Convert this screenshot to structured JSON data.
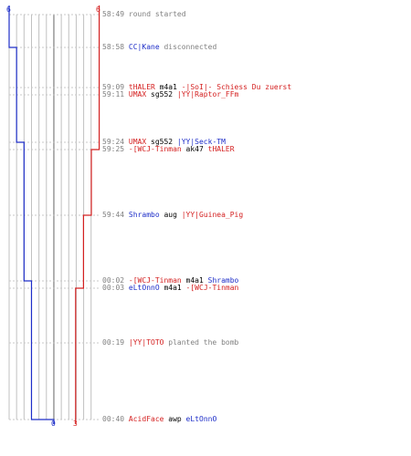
{
  "colors": {
    "ct": "#1e2ec8",
    "t": "#d42020",
    "grid": "#c0c0c0",
    "center": "#909090",
    "guide": "#c8c8c8",
    "time": "#808080",
    "text": "#000000"
  },
  "counts": {
    "ct_top": "6",
    "t_top": "6",
    "ct_bottom": "0",
    "t_bottom": "3"
  },
  "events": [
    {
      "time": "58:49",
      "parts": [
        {
          "text": "round started",
          "color": "time"
        }
      ]
    },
    {
      "time": "58:58",
      "parts": [
        {
          "text": "CC|Kane",
          "color": "ct"
        },
        {
          "text": " disconnected",
          "color": "time"
        }
      ]
    },
    {
      "time": "59:09",
      "parts": [
        {
          "text": "tHALER",
          "color": "t"
        },
        {
          "text": " m4a1 ",
          "color": "text"
        },
        {
          "text": "-|SoI|- Schiess Du zuerst",
          "color": "t"
        }
      ]
    },
    {
      "time": "59:11",
      "parts": [
        {
          "text": "UMAX",
          "color": "t"
        },
        {
          "text": " sg552 ",
          "color": "text"
        },
        {
          "text": "|YY|Raptor_FFm",
          "color": "t"
        }
      ]
    },
    {
      "time": "59:24",
      "parts": [
        {
          "text": "UMAX",
          "color": "t"
        },
        {
          "text": " sg552 ",
          "color": "text"
        },
        {
          "text": "|YY|Seck-TM",
          "color": "ct"
        }
      ]
    },
    {
      "time": "59:25",
      "parts": [
        {
          "text": "-[WCJ-Tinman",
          "color": "t"
        },
        {
          "text": " ak47 ",
          "color": "text"
        },
        {
          "text": "tHALER",
          "color": "t"
        }
      ]
    },
    {
      "time": "59:44",
      "parts": [
        {
          "text": "Shrambo",
          "color": "ct"
        },
        {
          "text": " aug ",
          "color": "text"
        },
        {
          "text": "|YY|Guinea_Pig",
          "color": "t"
        }
      ]
    },
    {
      "time": "00:02",
      "parts": [
        {
          "text": "-[WCJ-Tinman",
          "color": "t"
        },
        {
          "text": " m4a1 ",
          "color": "text"
        },
        {
          "text": "Shrambo",
          "color": "ct"
        }
      ]
    },
    {
      "time": "00:03",
      "parts": [
        {
          "text": "eLtOnnO",
          "color": "ct"
        },
        {
          "text": " m4a1 ",
          "color": "text"
        },
        {
          "text": "-[WCJ-Tinman",
          "color": "t"
        }
      ]
    },
    {
      "time": "00:19",
      "parts": [
        {
          "text": "|YY|TOTO",
          "color": "t"
        },
        {
          "text": " planted the bomb",
          "color": "time"
        }
      ]
    },
    {
      "time": "00:40",
      "parts": [
        {
          "text": "AcidFace",
          "color": "t"
        },
        {
          "text": " awp ",
          "color": "text"
        },
        {
          "text": "eLtOnnO",
          "color": "ct"
        }
      ]
    }
  ],
  "chart_data": {
    "type": "line",
    "x_axis": "team player count",
    "ylabel": "",
    "xlim": [
      0,
      6
    ],
    "series": [
      {
        "values": [
          6,
          5,
          5,
          5,
          4,
          4,
          4,
          3,
          3,
          3,
          0
        ]
      },
      {
        "values": [
          6,
          6,
          6,
          6,
          6,
          5,
          4,
          4,
          3,
          3,
          3
        ]
      }
    ]
  }
}
